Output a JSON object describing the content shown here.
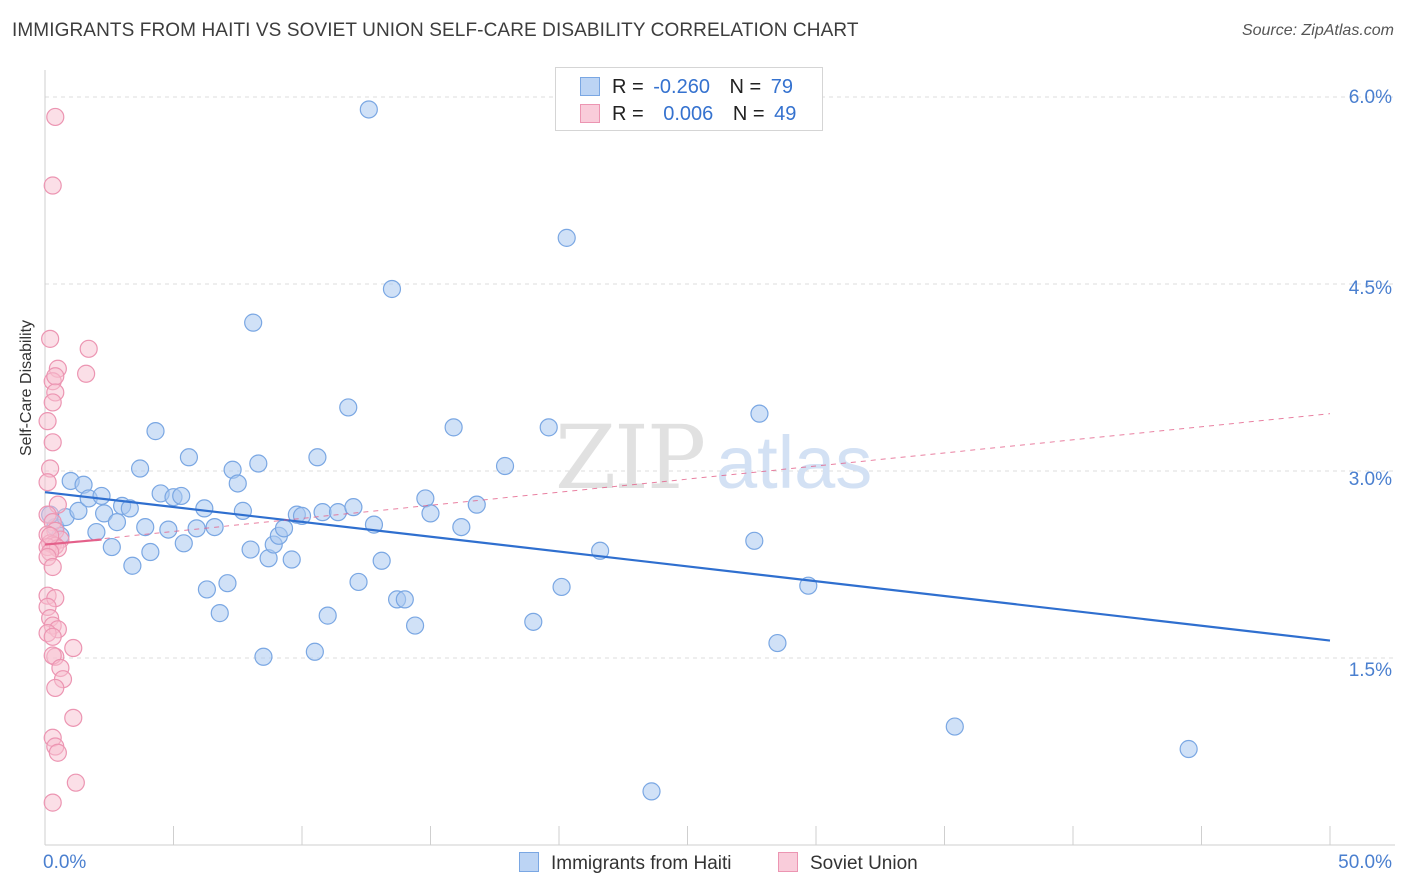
{
  "title": "IMMIGRANTS FROM HAITI VS SOVIET UNION SELF-CARE DISABILITY CORRELATION CHART",
  "source": "Source: ZipAtlas.com",
  "watermark": {
    "zip": "ZIP",
    "atlas": "atlas"
  },
  "legend": {
    "series1": {
      "r_label": "R =",
      "r_value": "-0.260",
      "n_label": "N =",
      "n_value": "79"
    },
    "series2": {
      "r_label": "R =",
      "r_value": "0.006",
      "n_label": "N =",
      "n_value": "49"
    }
  },
  "colors": {
    "haiti_fill": "#aac8f0",
    "haiti_stroke": "#7aa7e3",
    "haiti_line": "#2f6fcf",
    "soviet_fill": "#f7bfd0",
    "soviet_stroke": "#ec95b2",
    "soviet_line": "#e4608a",
    "tick_label": "#4a7fcf",
    "grid": "#dcdcdc"
  },
  "chart_data": {
    "type": "scatter",
    "title": "IMMIGRANTS FROM HAITI VS SOVIET UNION SELF-CARE DISABILITY CORRELATION CHART",
    "xlabel": "",
    "ylabel": "Self-Care Disability",
    "xlim": [
      0,
      50
    ],
    "ylim": [
      0,
      6.2
    ],
    "x_tick_labels": [
      "0.0%",
      "50.0%"
    ],
    "y_ticks": [
      1.5,
      3.0,
      4.5,
      6.0
    ],
    "y_tick_labels": [
      "1.5%",
      "3.0%",
      "4.5%",
      "6.0%"
    ],
    "grid": true,
    "legend_position": "top-center",
    "series": [
      {
        "name": "Immigrants from Haiti",
        "trend": {
          "x": [
            0,
            50
          ],
          "y": [
            2.83,
            1.64
          ],
          "style": "solid"
        },
        "points": [
          [
            0.4,
            2.55
          ],
          [
            0.6,
            2.48
          ],
          [
            0.8,
            2.63
          ],
          [
            1.0,
            2.92
          ],
          [
            1.3,
            2.68
          ],
          [
            1.5,
            2.89
          ],
          [
            1.7,
            2.78
          ],
          [
            2.0,
            2.51
          ],
          [
            2.2,
            2.8
          ],
          [
            2.3,
            2.66
          ],
          [
            2.6,
            2.39
          ],
          [
            2.8,
            2.59
          ],
          [
            3.0,
            2.72
          ],
          [
            3.3,
            2.7
          ],
          [
            3.4,
            2.24
          ],
          [
            3.7,
            3.02
          ],
          [
            3.9,
            2.55
          ],
          [
            4.1,
            2.35
          ],
          [
            4.3,
            3.32
          ],
          [
            4.5,
            2.82
          ],
          [
            4.8,
            2.53
          ],
          [
            5.0,
            2.79
          ],
          [
            5.3,
            2.8
          ],
          [
            5.4,
            2.42
          ],
          [
            5.6,
            3.11
          ],
          [
            5.9,
            2.54
          ],
          [
            6.2,
            2.7
          ],
          [
            6.3,
            2.05
          ],
          [
            6.6,
            2.55
          ],
          [
            6.8,
            1.86
          ],
          [
            7.1,
            2.1
          ],
          [
            7.3,
            3.01
          ],
          [
            7.5,
            2.9
          ],
          [
            7.7,
            2.68
          ],
          [
            8.0,
            2.37
          ],
          [
            8.1,
            4.19
          ],
          [
            8.3,
            3.06
          ],
          [
            8.5,
            1.51
          ],
          [
            8.7,
            2.3
          ],
          [
            8.9,
            2.41
          ],
          [
            9.1,
            2.48
          ],
          [
            9.3,
            2.54
          ],
          [
            9.6,
            2.29
          ],
          [
            9.8,
            2.65
          ],
          [
            10.0,
            2.64
          ],
          [
            10.5,
            1.55
          ],
          [
            10.6,
            3.11
          ],
          [
            10.8,
            2.67
          ],
          [
            11.0,
            1.84
          ],
          [
            11.4,
            2.67
          ],
          [
            11.8,
            3.51
          ],
          [
            12.0,
            2.71
          ],
          [
            12.2,
            2.11
          ],
          [
            12.6,
            5.9
          ],
          [
            12.8,
            2.57
          ],
          [
            13.1,
            2.28
          ],
          [
            13.5,
            4.46
          ],
          [
            13.7,
            1.97
          ],
          [
            14.0,
            1.97
          ],
          [
            14.4,
            1.76
          ],
          [
            14.8,
            2.78
          ],
          [
            15.0,
            2.66
          ],
          [
            15.9,
            3.35
          ],
          [
            16.2,
            2.55
          ],
          [
            16.8,
            2.73
          ],
          [
            17.9,
            3.04
          ],
          [
            19.0,
            1.79
          ],
          [
            19.6,
            3.35
          ],
          [
            20.1,
            2.07
          ],
          [
            20.3,
            4.87
          ],
          [
            21.6,
            2.36
          ],
          [
            23.6,
            0.43
          ],
          [
            27.6,
            2.44
          ],
          [
            27.8,
            3.46
          ],
          [
            28.5,
            1.62
          ],
          [
            29.7,
            2.08
          ],
          [
            35.4,
            0.95
          ],
          [
            44.5,
            0.77
          ],
          [
            0.2,
            2.65
          ]
        ]
      },
      {
        "name": "Soviet Union",
        "trend_observed": {
          "x": [
            0,
            2.2
          ],
          "y": [
            2.41,
            2.45
          ],
          "style": "solid"
        },
        "trend_projected": {
          "x": [
            0,
            50
          ],
          "y": [
            2.41,
            3.46
          ],
          "style": "dashed"
        },
        "points": [
          [
            0.4,
            5.84
          ],
          [
            0.3,
            5.29
          ],
          [
            0.2,
            4.06
          ],
          [
            0.5,
            3.82
          ],
          [
            0.3,
            3.72
          ],
          [
            0.4,
            3.76
          ],
          [
            0.4,
            3.63
          ],
          [
            0.3,
            3.55
          ],
          [
            0.1,
            3.4
          ],
          [
            0.3,
            3.23
          ],
          [
            0.2,
            3.02
          ],
          [
            0.1,
            2.91
          ],
          [
            0.5,
            2.73
          ],
          [
            0.1,
            2.65
          ],
          [
            0.3,
            2.59
          ],
          [
            0.4,
            2.52
          ],
          [
            0.1,
            2.49
          ],
          [
            0.6,
            2.45
          ],
          [
            0.2,
            2.42
          ],
          [
            0.3,
            2.41
          ],
          [
            0.4,
            2.4
          ],
          [
            0.1,
            2.39
          ],
          [
            0.5,
            2.38
          ],
          [
            0.2,
            2.35
          ],
          [
            0.1,
            2.31
          ],
          [
            0.3,
            2.23
          ],
          [
            0.1,
            2.0
          ],
          [
            0.4,
            1.98
          ],
          [
            0.1,
            1.91
          ],
          [
            0.2,
            1.82
          ],
          [
            0.3,
            1.76
          ],
          [
            0.5,
            1.73
          ],
          [
            0.1,
            1.7
          ],
          [
            0.3,
            1.67
          ],
          [
            0.4,
            1.51
          ],
          [
            0.3,
            1.52
          ],
          [
            0.6,
            1.42
          ],
          [
            0.7,
            1.33
          ],
          [
            0.4,
            1.26
          ],
          [
            1.1,
            1.02
          ],
          [
            0.3,
            0.86
          ],
          [
            0.4,
            0.79
          ],
          [
            0.5,
            0.74
          ],
          [
            1.2,
            0.5
          ],
          [
            0.3,
            0.34
          ],
          [
            1.7,
            3.98
          ],
          [
            1.6,
            3.78
          ],
          [
            1.1,
            1.58
          ],
          [
            0.2,
            2.48
          ]
        ]
      }
    ]
  }
}
